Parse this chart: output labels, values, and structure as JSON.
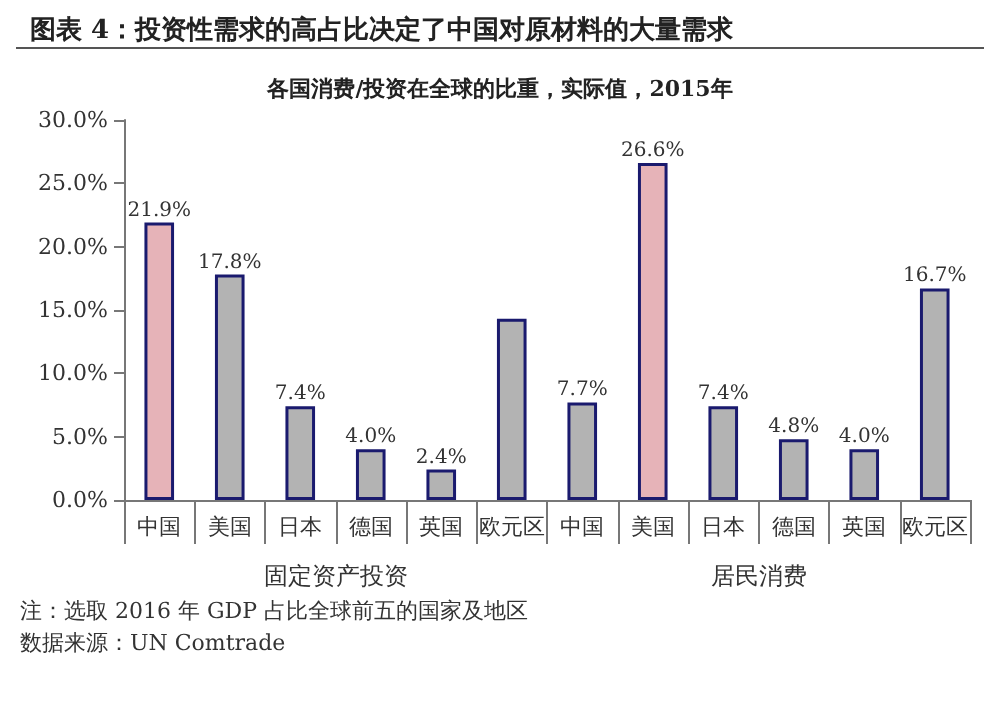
{
  "chart_data": {
    "type": "bar",
    "title": "图表 4：投资性需求的高占比决定了中国对原材料的大量需求",
    "subtitle": "各国消费/投资在全球的比重，实际值，2015年",
    "categories": [
      "中国",
      "美国",
      "日本",
      "德国",
      "英国",
      "欧元区",
      "中国",
      "美国",
      "日本",
      "德国",
      "英国",
      "欧元区"
    ],
    "values": [
      21.9,
      17.8,
      7.4,
      4.0,
      2.4,
      14.3,
      7.7,
      26.6,
      7.4,
      4.8,
      4.0,
      16.7
    ],
    "colors": [
      "#e6b3b8",
      "#b3b3b3",
      "#b3b3b3",
      "#b3b3b3",
      "#b3b3b3",
      "#b3b3b3",
      "#b3b3b3",
      "#e6b3b8",
      "#b3b3b3",
      "#b3b3b3",
      "#b3b3b3",
      "#b3b3b3"
    ],
    "value_labels": [
      "21.9%",
      "17.8%",
      "7.4%",
      "4.0%",
      "2.4%",
      null,
      "7.7%",
      "26.6%",
      "7.4%",
      "4.8%",
      "4.0%",
      "16.7%"
    ],
    "ylim": [
      0,
      30
    ],
    "yticks": [
      {
        "value": 0,
        "label": "0.0%"
      },
      {
        "value": 5,
        "label": "5.0%"
      },
      {
        "value": 10,
        "label": "10.0%"
      },
      {
        "value": 15,
        "label": "15.0%"
      },
      {
        "value": 20,
        "label": "20.0%"
      },
      {
        "value": 25,
        "label": "25.0%"
      },
      {
        "value": 30,
        "label": "30.0%"
      }
    ],
    "grid": false,
    "annotations": [
      "固定资产投资",
      "居民消费",
      "注：选取 2016 年 GDP 占比全球前五的国家及地区",
      "数据来源：UN Comtrade"
    ]
  }
}
